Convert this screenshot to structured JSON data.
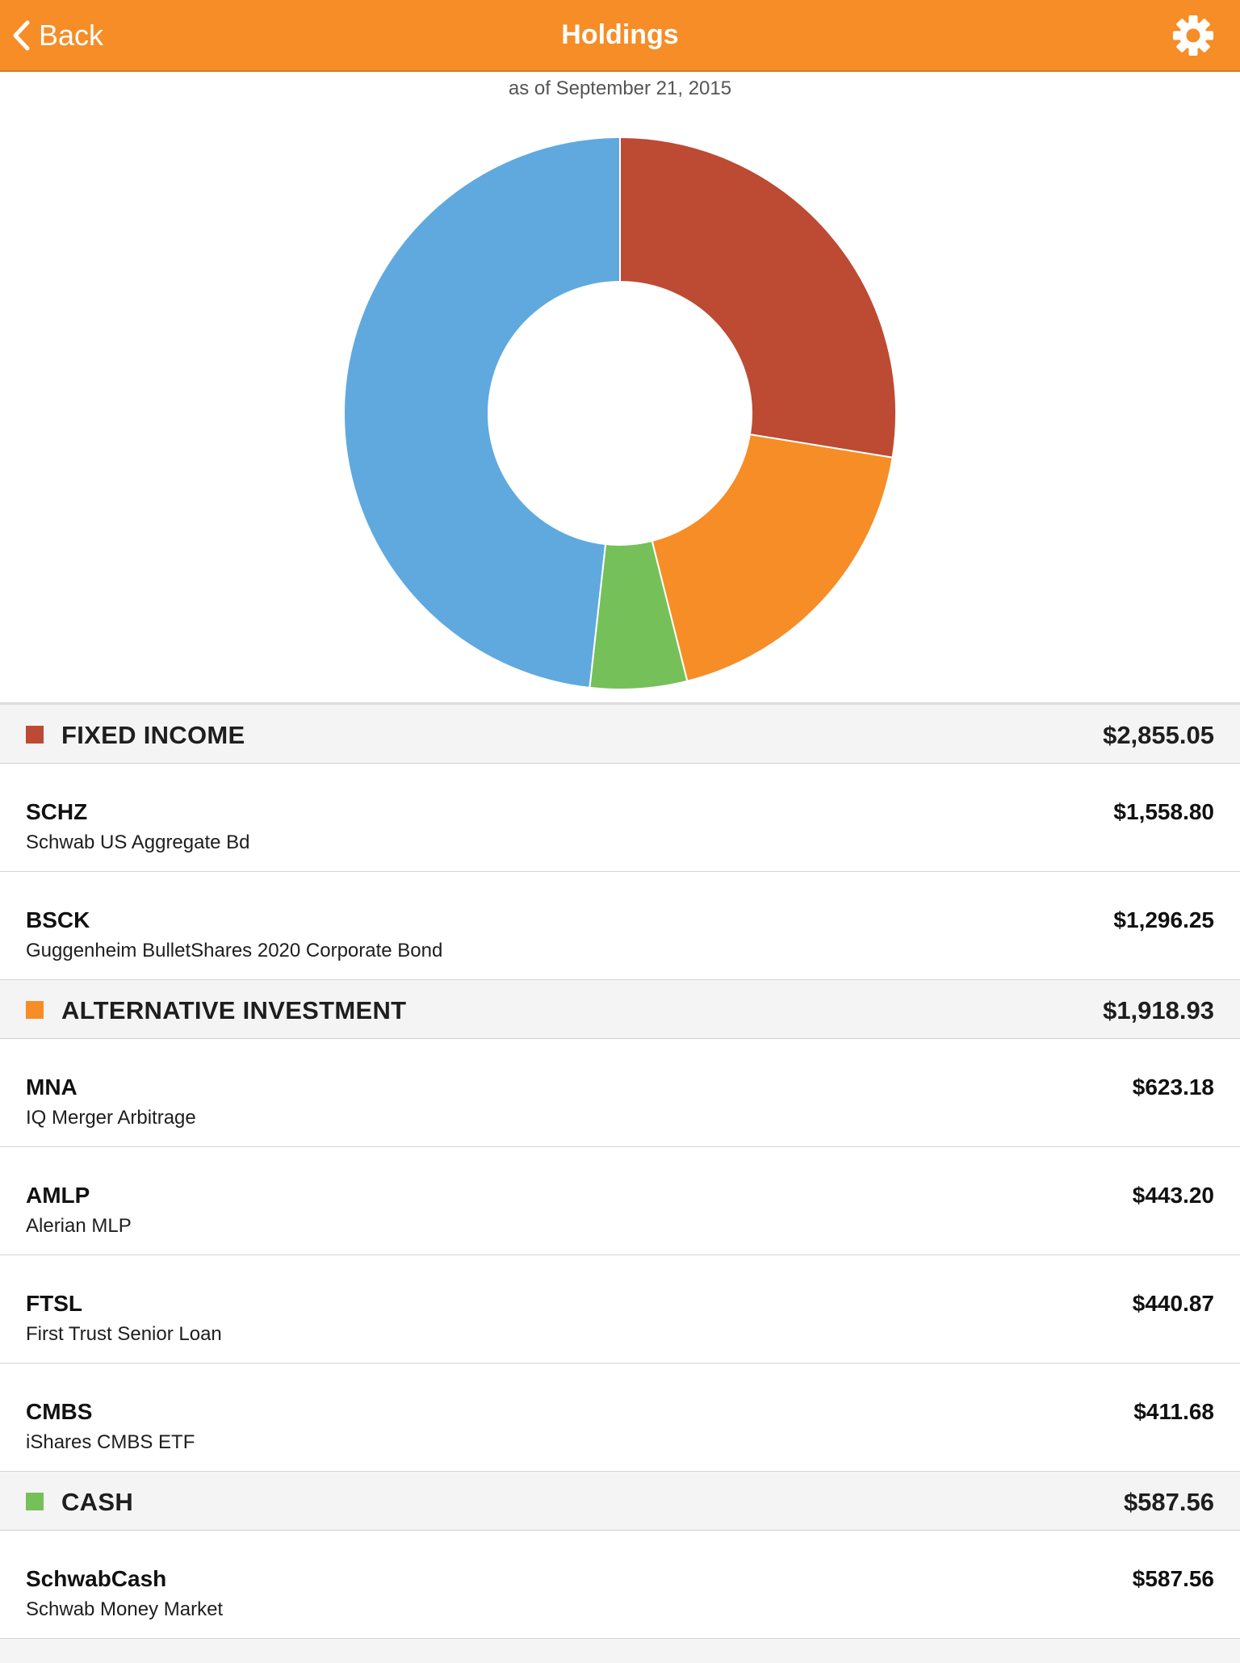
{
  "nav": {
    "back_label": "Back",
    "title": "Holdings",
    "back_icon": "chevron-left-icon",
    "settings_icon": "gear-icon"
  },
  "as_of": "as of September 21, 2015",
  "colors": {
    "accent": "#f68d26",
    "fixed_income": "#bd4a33",
    "alternative_investment": "#f68d26",
    "cash": "#76c05a",
    "other": "#5fa9de"
  },
  "chart_data": {
    "type": "pie",
    "donut": true,
    "slices": [
      {
        "label": "FIXED INCOME",
        "value": 2855.05,
        "color": "#bd4a33"
      },
      {
        "label": "ALTERNATIVE INVESTMENT",
        "value": 1918.93,
        "color": "#f68d26"
      },
      {
        "label": "CASH",
        "value": 587.56,
        "color": "#76c05a"
      },
      {
        "label": "",
        "value": 4998.0,
        "color": "#5fa9de"
      }
    ]
  },
  "sections": [
    {
      "name": "FIXED INCOME",
      "total": "$2,855.05",
      "color": "#bd4a33",
      "items": [
        {
          "symbol": "SCHZ",
          "description": "Schwab US Aggregate Bd",
          "amount": "$1,558.80"
        },
        {
          "symbol": "BSCK",
          "description": "Guggenheim BulletShares 2020 Corporate Bond",
          "amount": "$1,296.25"
        }
      ]
    },
    {
      "name": "ALTERNATIVE INVESTMENT",
      "total": "$1,918.93",
      "color": "#f68d26",
      "items": [
        {
          "symbol": "MNA",
          "description": "IQ Merger Arbitrage",
          "amount": "$623.18"
        },
        {
          "symbol": "AMLP",
          "description": "Alerian MLP",
          "amount": "$443.20"
        },
        {
          "symbol": "FTSL",
          "description": "First Trust Senior Loan",
          "amount": "$440.87"
        },
        {
          "symbol": "CMBS",
          "description": "iShares CMBS ETF",
          "amount": "$411.68"
        }
      ]
    },
    {
      "name": "CASH",
      "total": "$587.56",
      "color": "#76c05a",
      "items": [
        {
          "symbol": "SchwabCash",
          "description": "Schwab Money Market",
          "amount": "$587.56"
        }
      ]
    }
  ]
}
